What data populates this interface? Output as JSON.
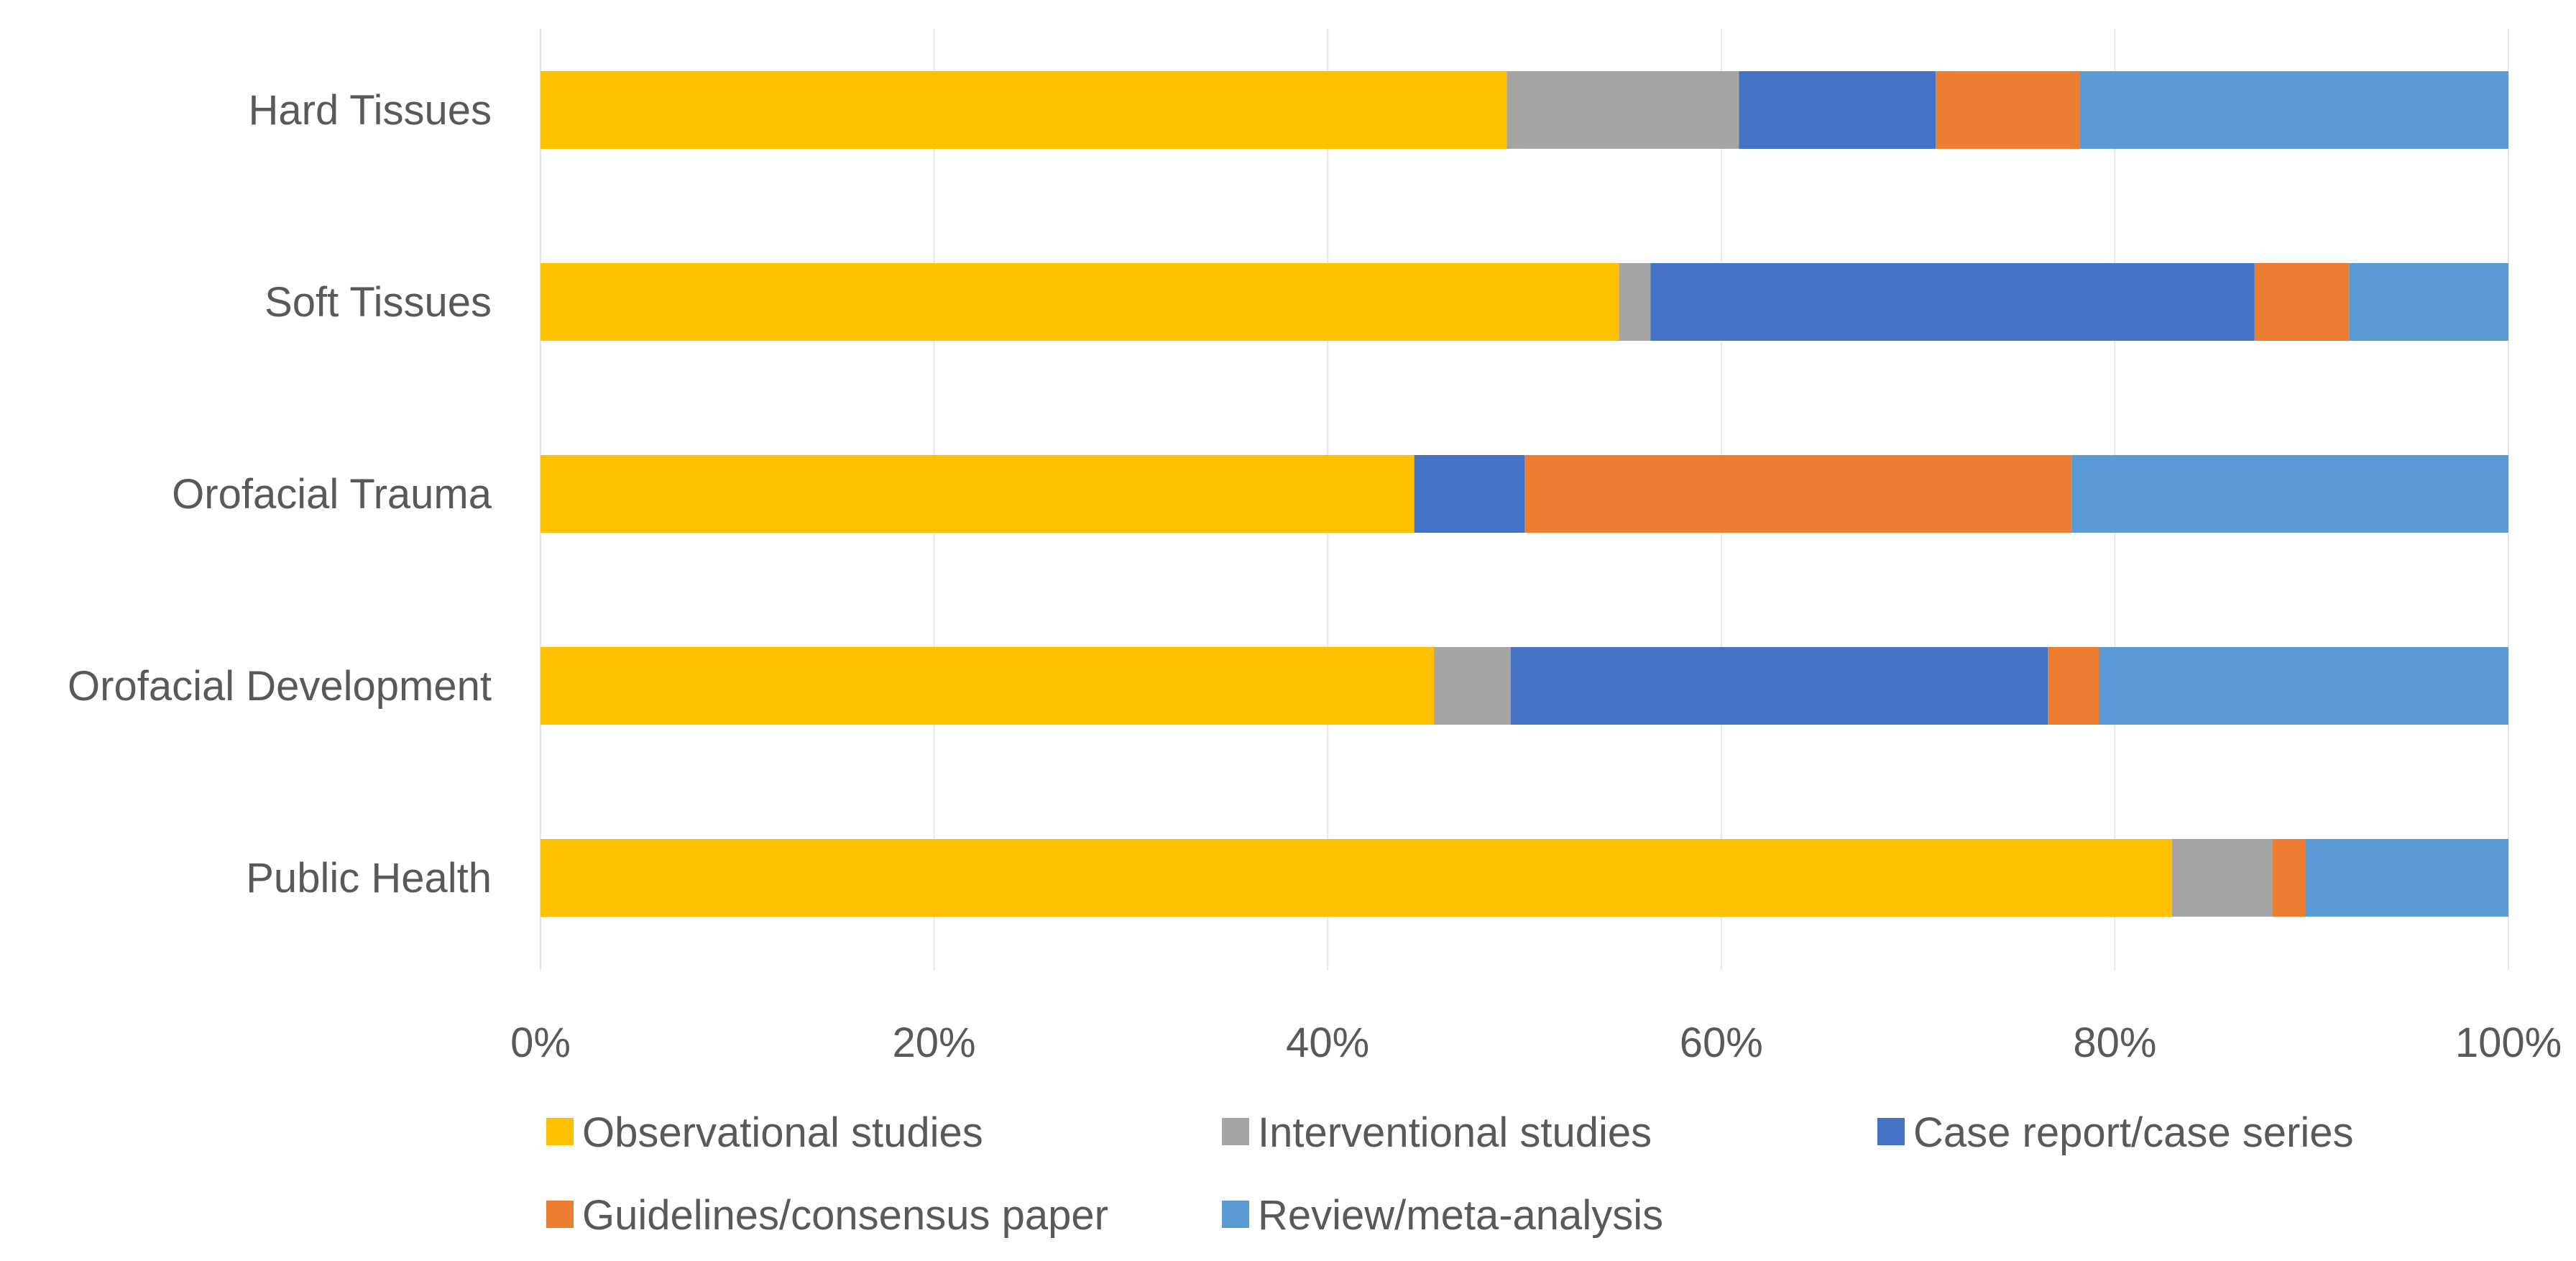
{
  "chart_data": {
    "type": "bar",
    "orientation": "horizontal",
    "stacked": "percent",
    "title": "",
    "xlabel": "",
    "ylabel": "",
    "xlim": [
      0,
      100
    ],
    "categories": [
      "Hard Tissues",
      "Soft Tissues",
      "Orofacial Trauma",
      "Orofacial Development",
      "Public Health"
    ],
    "x_ticks": [
      "0%",
      "20%",
      "40%",
      "60%",
      "80%",
      "100%"
    ],
    "grid": true,
    "legend_position": "bottom",
    "series": [
      {
        "name": "Observational studies",
        "color": "#FFC000",
        "values": [
          49.1,
          54.8,
          44.4,
          45.4,
          82.9
        ]
      },
      {
        "name": "Interventional studies",
        "color": "#A5A5A5",
        "values": [
          11.8,
          1.6,
          0,
          3.9,
          5.1
        ]
      },
      {
        "name": "Case report/case series",
        "color": "#4472C4",
        "values": [
          10.0,
          30.7,
          5.6,
          27.3,
          0
        ]
      },
      {
        "name": "Guidelines/consensus paper",
        "color": "#ED7D31",
        "values": [
          7.3,
          4.8,
          27.8,
          2.6,
          1.7
        ]
      },
      {
        "name": "Review/meta-analysis",
        "color": "#5B9BD5",
        "values": [
          21.8,
          8.1,
          22.2,
          20.8,
          10.3
        ]
      }
    ]
  }
}
